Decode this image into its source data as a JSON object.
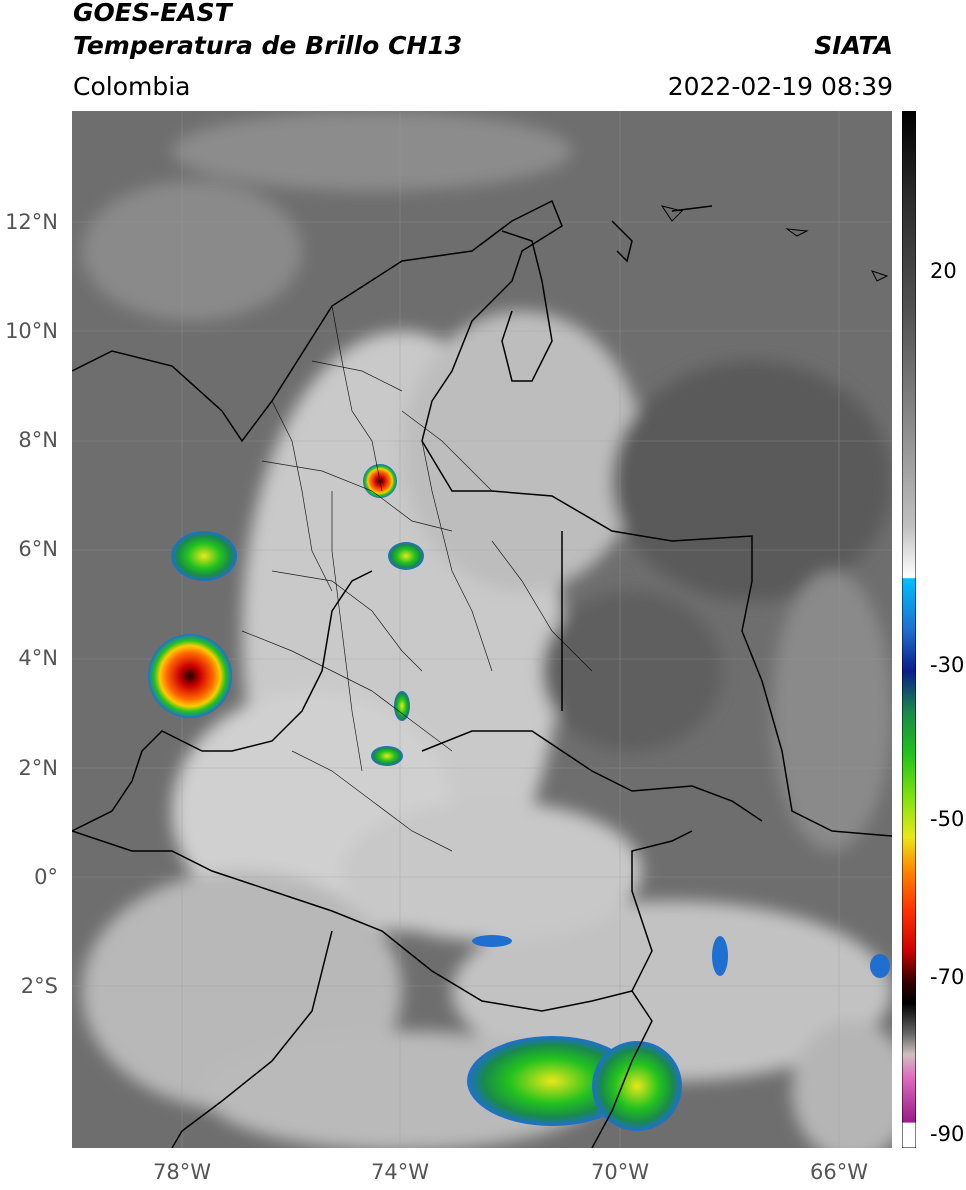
{
  "header": {
    "satellite": "GOES-EAST",
    "product": "Temperatura de Brillo CH13",
    "region": "Colombia",
    "source": "SIATA",
    "datetime": "2022-02-19 08:39"
  },
  "map": {
    "lat_ticks": [
      "12°N",
      "10°N",
      "8°N",
      "6°N",
      "4°N",
      "2°N",
      "0°",
      "2°S"
    ],
    "lon_ticks": [
      "78°W",
      "74°W",
      "70°W",
      "66°W"
    ],
    "background_gray": "#6e6e6e"
  },
  "colorbar": {
    "labels": [
      "20",
      "-30",
      "-50",
      "-70",
      "-90"
    ],
    "colors": [
      "#000000",
      "#1a1a1a",
      "#333333",
      "#4d4d4d",
      "#666666",
      "#808080",
      "#999999",
      "#b3b3b3",
      "#cccccc",
      "#e6e6e6",
      "#ffffff",
      "#00bfff",
      "#1e6fd0",
      "#0b1e8c",
      "#1a8a4a",
      "#22c21e",
      "#7de00f",
      "#e8e81a",
      "#ffcc00",
      "#ff8c00",
      "#ff3300",
      "#cc0000",
      "#550000",
      "#000000",
      "#666666",
      "#c0b0b0",
      "#e070c0",
      "#9a1a8a",
      "#ffffff"
    ]
  }
}
